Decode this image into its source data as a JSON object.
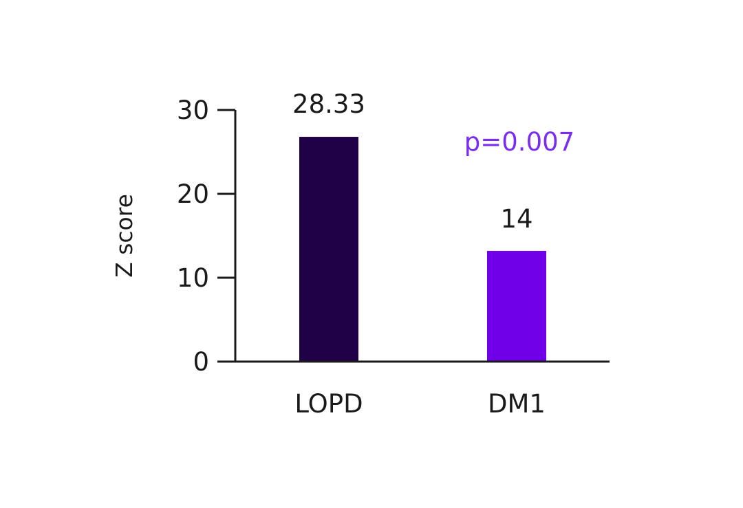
{
  "chart_data": {
    "type": "bar",
    "categories": [
      "LOPD",
      "DM1"
    ],
    "values": [
      28.33,
      14
    ],
    "value_labels": [
      "28.33",
      "14"
    ],
    "colors": [
      "#200046",
      "#7000e8"
    ],
    "title": "",
    "xlabel": "",
    "ylabel": "Z score",
    "ylim": [
      0,
      30
    ],
    "yticks": [
      0,
      10,
      20,
      30
    ],
    "ytick_labels": [
      "0",
      "10",
      "20",
      "30"
    ],
    "annotation": {
      "text": "p=0.007",
      "color": "#7a2cf0"
    },
    "grid": false,
    "legend": "none"
  }
}
